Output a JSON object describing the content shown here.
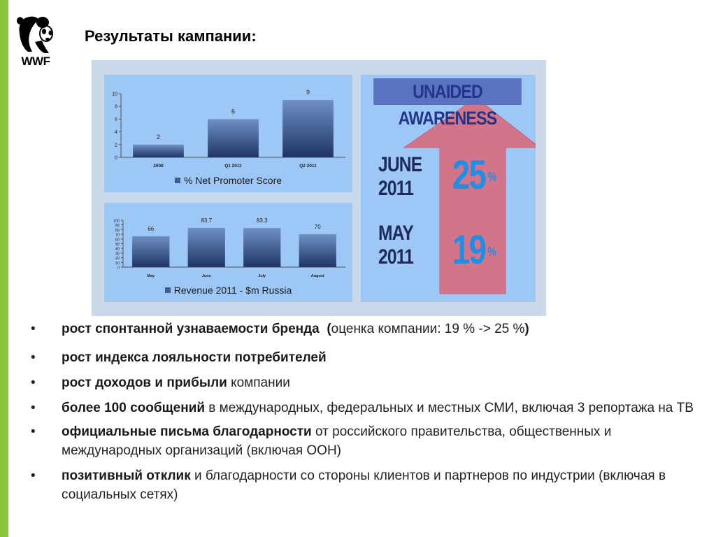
{
  "title": "Результаты кампании:",
  "logo": {
    "text": "WWF"
  },
  "colors": {
    "accent_green": "#8cc63f",
    "bar": "#3d5f93",
    "chart_bg": "#9dc8f5",
    "arrow": "#d2748a",
    "percent": "#1e8fe6"
  },
  "chart_data": [
    {
      "type": "bar",
      "categories": [
        "2008",
        "Q1 2011",
        "Q2 2011"
      ],
      "values": [
        2,
        6,
        9
      ],
      "value_labels": [
        "2",
        "6",
        "9"
      ],
      "ylim": [
        0,
        10
      ],
      "yticks": [
        "0",
        "2",
        "4",
        "6",
        "8",
        "10"
      ],
      "legend": "% Net Promoter Score",
      "legend_position": "bottom"
    },
    {
      "type": "bar",
      "categories": [
        "May",
        "June",
        "July",
        "August"
      ],
      "values": [
        66,
        83.7,
        83.3,
        70
      ],
      "value_labels": [
        "66",
        "83.7",
        "83.3",
        "70"
      ],
      "ylim": [
        0,
        100
      ],
      "yticks": [
        "0",
        "10",
        "20",
        "30",
        "40",
        "50",
        "60",
        "70",
        "80",
        "90",
        "100"
      ],
      "legend": "Revenue 2011 - $m Russia",
      "legend_position": "bottom"
    }
  ],
  "awareness": {
    "heading": "UNAIDED AWARENESS",
    "june_l1": "JUNE",
    "june_l2": "2011",
    "june_value": "25",
    "may_l1": "MAY",
    "may_l2": "2011",
    "may_value": "19",
    "unit": "%"
  },
  "bullets": [
    {
      "bullet": "•",
      "bold": "рост спонтанной узнаваемости бренда",
      "rest": "(оценка компании: 19 % -> 25 %)"
    },
    {
      "bullet": "•",
      "bold": "рост индекса лояльности потребителей",
      "rest": ""
    },
    {
      "bullet": "•",
      "bold": "рост доходов и прибыли",
      "rest": " компании"
    },
    {
      "bullet": "•",
      "bold": "более 100 сообщений",
      "rest": " в международных, федеральных и местных СМИ, включая 3 репортажа на ТВ"
    },
    {
      "bullet": "•",
      "bold": "официальные письма благодарности",
      "rest": " от российского правительства, общественных и международных организаций (включая ООН)"
    },
    {
      "bullet": "•",
      "bold": "позитивный отклик",
      "rest": " и благодарности со стороны клиентов и партнеров по индустрии (включая в социальных сетях)"
    }
  ]
}
